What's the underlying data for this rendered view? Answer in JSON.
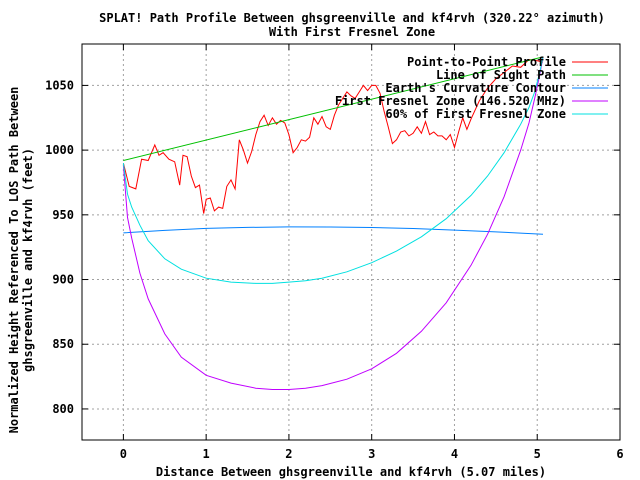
{
  "chart_data": {
    "type": "line",
    "title": "SPLAT! Path Profile Between ghsgreenville and kf4rvh (320.22° azimuth)",
    "subtitle": "With First Fresnel Zone",
    "xlabel": "Distance Between ghsgreenville and kf4rvh (5.07 miles)",
    "ylabel_line1": "Normalized Height Referenced To LOS Path Between",
    "ylabel_line2": "ghsgreenville and kf4rvh (feet)",
    "xlim": [
      -0.5,
      6
    ],
    "ylim": [
      776,
      1082
    ],
    "x_ticks": [
      0,
      1,
      2,
      3,
      4,
      5,
      6
    ],
    "y_ticks": [
      800,
      850,
      900,
      950,
      1000,
      1050
    ],
    "grid": true,
    "legend_position": "top-right",
    "series": [
      {
        "name": "Point-to-Point Profile",
        "color": "#ff0000",
        "x": [
          0,
          0.07,
          0.15,
          0.22,
          0.3,
          0.38,
          0.43,
          0.48,
          0.55,
          0.62,
          0.68,
          0.72,
          0.77,
          0.82,
          0.87,
          0.92,
          0.97,
          1.0,
          1.05,
          1.1,
          1.15,
          1.2,
          1.25,
          1.3,
          1.35,
          1.4,
          1.45,
          1.5,
          1.55,
          1.6,
          1.65,
          1.7,
          1.75,
          1.8,
          1.85,
          1.9,
          1.95,
          2.0,
          2.05,
          2.1,
          2.15,
          2.2,
          2.25,
          2.3,
          2.35,
          2.4,
          2.45,
          2.5,
          2.55,
          2.6,
          2.65,
          2.7,
          2.75,
          2.8,
          2.85,
          2.9,
          2.95,
          3.0,
          3.05,
          3.1,
          3.15,
          3.2,
          3.25,
          3.3,
          3.35,
          3.4,
          3.45,
          3.5,
          3.55,
          3.6,
          3.65,
          3.7,
          3.75,
          3.8,
          3.85,
          3.9,
          3.95,
          4.0,
          4.05,
          4.1,
          4.15,
          4.2,
          4.3,
          4.4,
          4.5,
          4.6,
          4.7,
          4.8,
          4.9,
          5.0,
          5.07
        ],
        "y": [
          990,
          972,
          970,
          993,
          992,
          1004,
          996,
          998,
          993,
          991,
          973,
          996,
          995,
          980,
          971,
          973,
          951,
          962,
          963,
          953,
          956,
          955,
          972,
          977,
          970,
          1008,
          1000,
          990,
          999,
          1012,
          1022,
          1027,
          1019,
          1025,
          1020,
          1023,
          1021,
          1012,
          998,
          1002,
          1008,
          1007,
          1010,
          1025,
          1020,
          1026,
          1018,
          1016,
          1027,
          1035,
          1040,
          1045,
          1042,
          1040,
          1045,
          1050,
          1046,
          1050,
          1050,
          1044,
          1030,
          1018,
          1005,
          1008,
          1014,
          1015,
          1011,
          1013,
          1018,
          1013,
          1022,
          1012,
          1014,
          1011,
          1011,
          1008,
          1012,
          1002,
          1014,
          1025,
          1016,
          1024,
          1038,
          1048,
          1055,
          1060,
          1065,
          1064,
          1070,
          1069,
          1068
        ]
      },
      {
        "name": "Line of Sight Path",
        "color": "#00c000",
        "x": [
          0,
          5.07
        ],
        "y": [
          992,
          1072
        ]
      },
      {
        "name": "Earth's Curvature Contour",
        "color": "#0080ff",
        "x": [
          0,
          0.5,
          1.0,
          1.5,
          2.0,
          2.5,
          3.0,
          3.5,
          4.0,
          4.5,
          5.07
        ],
        "y": [
          936,
          938,
          939.5,
          940.3,
          940.7,
          940.6,
          940.2,
          939.4,
          938.2,
          936.8,
          935
        ]
      },
      {
        "name": "First Fresnel Zone (146.520 MHz)",
        "color": "#c000ff",
        "x": [
          0,
          0.05,
          0.1,
          0.2,
          0.3,
          0.5,
          0.7,
          1.0,
          1.3,
          1.6,
          1.8,
          2.0,
          2.2,
          2.4,
          2.7,
          3.0,
          3.3,
          3.6,
          3.9,
          4.2,
          4.4,
          4.6,
          4.8,
          4.9,
          4.97,
          5.03,
          5.07
        ],
        "y": [
          988,
          948,
          932,
          905,
          885,
          858,
          840,
          826,
          820,
          816,
          815,
          815,
          816,
          818,
          823,
          831,
          843,
          860,
          882,
          911,
          935,
          964,
          1000,
          1021,
          1040,
          1058,
          1072
        ]
      },
      {
        "name": "60% of First Fresnel Zone",
        "color": "#00e0e0",
        "x": [
          0,
          0.05,
          0.1,
          0.2,
          0.3,
          0.5,
          0.7,
          1.0,
          1.3,
          1.6,
          1.8,
          2.0,
          2.2,
          2.4,
          2.7,
          3.0,
          3.3,
          3.6,
          3.9,
          4.2,
          4.4,
          4.6,
          4.8,
          4.9,
          4.97,
          5.03,
          5.07
        ],
        "y": [
          990,
          966,
          956,
          942,
          930,
          916,
          908,
          901,
          898,
          897,
          897,
          898,
          899,
          901,
          906,
          913,
          922,
          933,
          947,
          965,
          980,
          998,
          1020,
          1033,
          1045,
          1060,
          1072
        ]
      }
    ]
  }
}
